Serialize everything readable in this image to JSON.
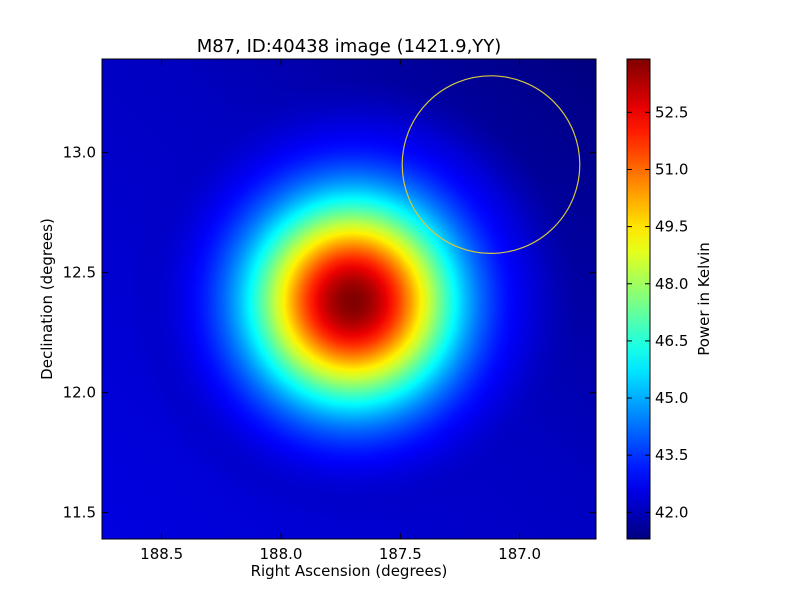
{
  "chart_data": {
    "type": "heatmap",
    "title": "M87, ID:40438 image (1421.9,YY)",
    "xlabel": "Right Ascension (degrees)",
    "ylabel": "Declination (degrees)",
    "xlim": [
      188.75,
      186.68
    ],
    "ylim": [
      11.39,
      13.39
    ],
    "xticks": [
      188.5,
      188.0,
      187.5,
      187.0
    ],
    "xtick_labels": [
      "188.5",
      "188.0",
      "187.5",
      "187.0"
    ],
    "yticks": [
      11.5,
      12.0,
      12.5,
      13.0
    ],
    "ytick_labels": [
      "11.5",
      "12.0",
      "12.5",
      "13.0"
    ],
    "x_inverted": true,
    "colormap": "jet",
    "grid": false,
    "colorbar": {
      "label": "Power in Kelvin",
      "range": [
        41.3,
        53.9
      ],
      "ticks": [
        42.0,
        43.5,
        45.0,
        46.5,
        48.0,
        49.5,
        51.0,
        52.5
      ],
      "tick_labels": [
        "42.0",
        "43.5",
        "45.0",
        "46.5",
        "48.0",
        "49.5",
        "51.0",
        "52.5"
      ]
    },
    "source": {
      "ra": 187.7,
      "dec": 12.38,
      "peak": 53.9,
      "baseline": 42.0,
      "sigma_deg": 0.29
    },
    "background_gradient": {
      "min": 41.3,
      "max": 42.5,
      "low_corner": "top-right"
    },
    "annotation": {
      "shape": "circle",
      "ra": 187.12,
      "dec": 12.95,
      "radius_deg": 0.37,
      "color": "#d4c840"
    }
  }
}
